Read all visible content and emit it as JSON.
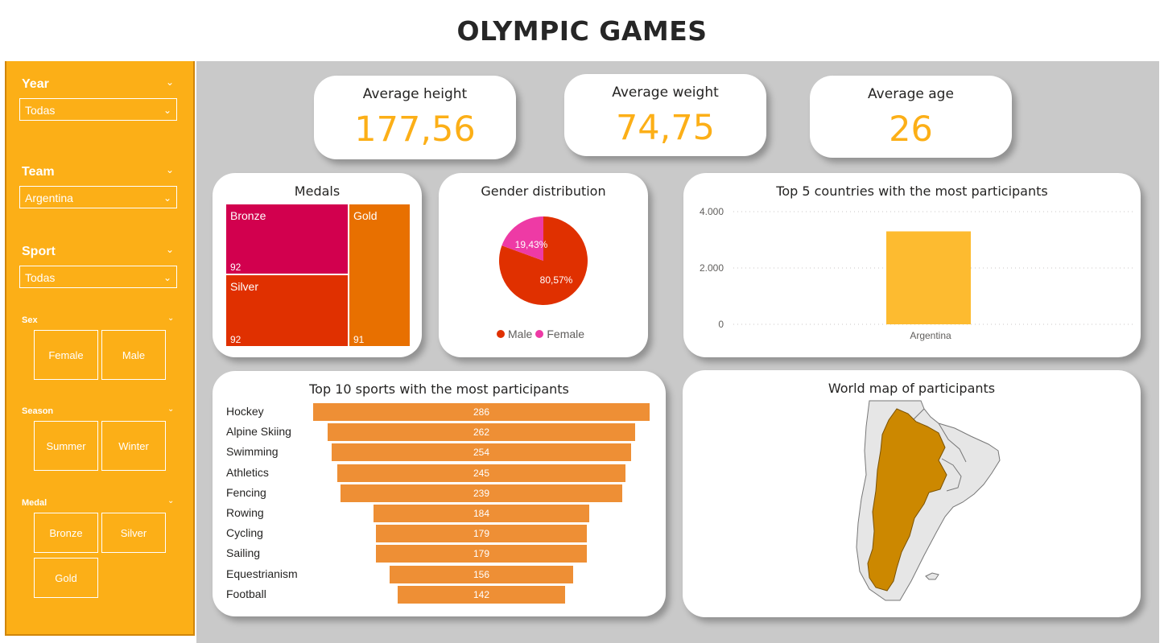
{
  "page": {
    "title": "OLYMPIC GAMES"
  },
  "filters": {
    "year": {
      "label": "Year",
      "value": "Todas"
    },
    "team": {
      "label": "Team",
      "value": "Argentina"
    },
    "sport": {
      "label": "Sport",
      "value": "Todas"
    },
    "sex": {
      "label": "Sex",
      "options": [
        "Female",
        "Male"
      ]
    },
    "season": {
      "label": "Season",
      "options": [
        "Summer",
        "Winter"
      ]
    },
    "medal": {
      "label": "Medal",
      "options": [
        "Bronze",
        "Silver",
        "Gold"
      ]
    }
  },
  "kpis": [
    {
      "label": "Average height",
      "value": "177,56"
    },
    {
      "label": "Average weight",
      "value": "74,75"
    },
    {
      "label": "Average age",
      "value": "26"
    }
  ],
  "colors": {
    "accent": "#fcaf17",
    "bronze": "#d2004e",
    "silver": "#e03000",
    "gold": "#e87000",
    "male": "#e03000",
    "female": "#ee3aa5",
    "bar": "#fdbb30",
    "funnel": "#ee8f35",
    "map_fill": "#cc8800"
  },
  "medals": {
    "title": "Medals",
    "chart_data": {
      "type": "treemap",
      "items": [
        {
          "name": "Bronze",
          "value": 92
        },
        {
          "name": "Silver",
          "value": 92
        },
        {
          "name": "Gold",
          "value": 91
        }
      ]
    }
  },
  "gender": {
    "title": "Gender distribution",
    "chart_data": {
      "type": "pie",
      "slices": [
        {
          "name": "Male",
          "value": 80.57,
          "label": "80,57%"
        },
        {
          "name": "Female",
          "value": 19.43,
          "label": "19,43%"
        }
      ],
      "legend": "bottom"
    }
  },
  "top5": {
    "title": "Top 5 countries with the most participants",
    "chart_data": {
      "type": "bar",
      "categories": [
        "Argentina"
      ],
      "values": [
        3300
      ],
      "ylim": [
        0,
        4000
      ],
      "yticks": [
        "0",
        "2.000",
        "4.000"
      ],
      "grid": true
    }
  },
  "top10": {
    "title": "Top 10 sports with the most participants",
    "chart_data": {
      "type": "funnel",
      "categories": [
        "Hockey",
        "Alpine Skiing",
        "Swimming",
        "Athletics",
        "Fencing",
        "Rowing",
        "Cycling",
        "Sailing",
        "Equestrianism",
        "Football"
      ],
      "values": [
        286,
        262,
        254,
        245,
        239,
        184,
        179,
        179,
        156,
        142
      ]
    }
  },
  "map": {
    "title": "World map of participants",
    "highlighted": "Argentina"
  }
}
